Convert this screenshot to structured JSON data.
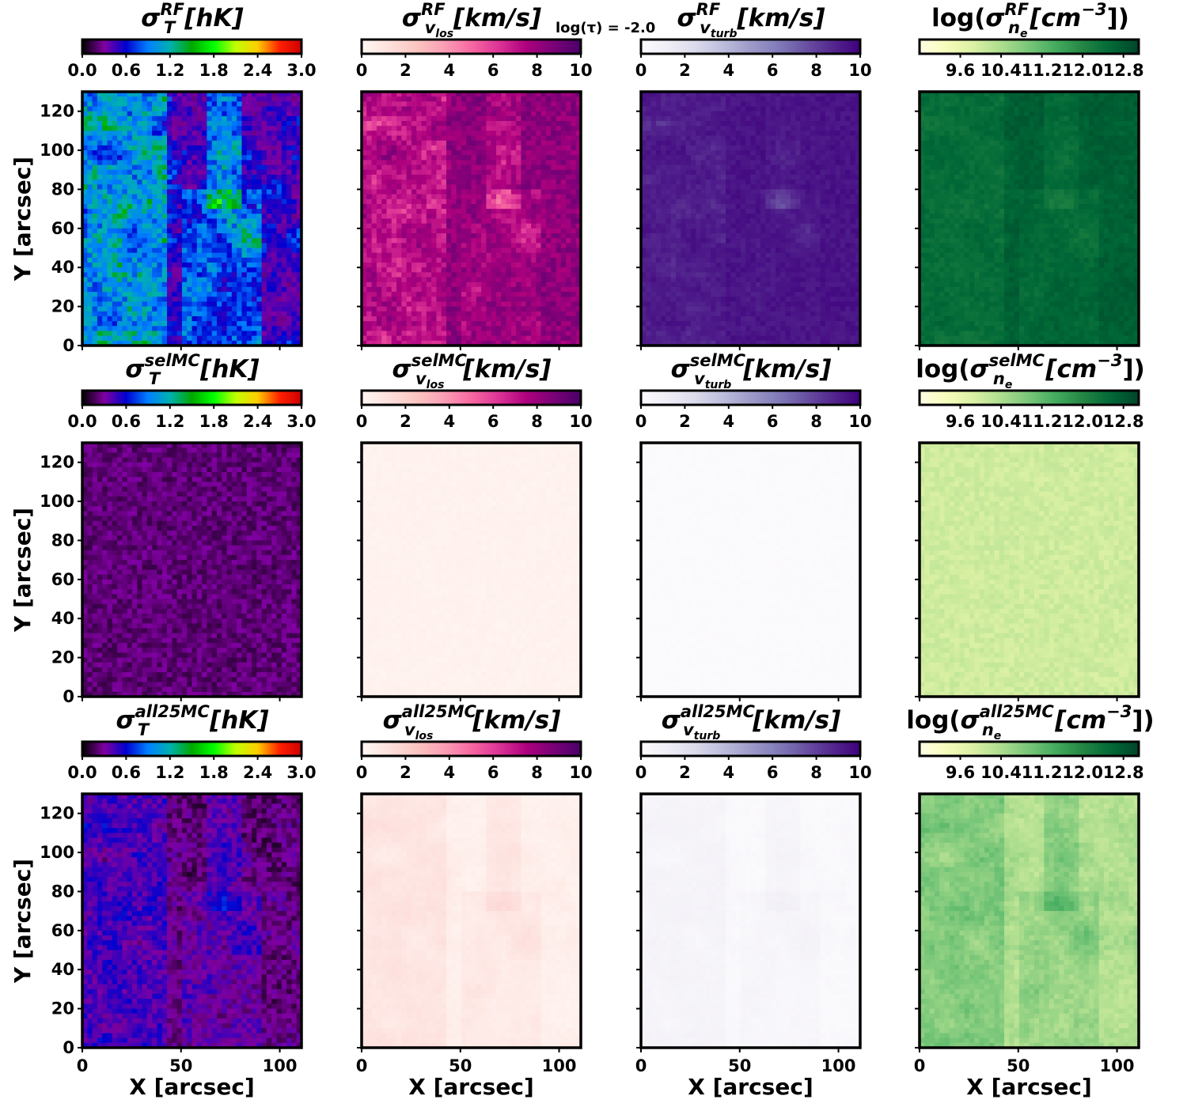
{
  "figure_note": "log(τ) = -2.0",
  "row_titles": [
    {
      "T": {
        "pre": "",
        "sym": "σ",
        "sup": "RF",
        "sub": "T",
        "unit": "[hK]",
        "post": ""
      },
      "vlos": {
        "pre": "",
        "sym": "σ",
        "sup": "RF",
        "sub": "v",
        "subsub": "los",
        "unit": "[km/s]",
        "post": ""
      },
      "vturb": {
        "pre": "",
        "sym": "σ",
        "sup": "RF",
        "sub": "v",
        "subsub": "turb",
        "unit": "[km/s]",
        "post": ""
      },
      "ne": {
        "pre": "log(",
        "sym": "σ",
        "sup": "RF",
        "sub": "n",
        "subsub": "e",
        "unit": "[cm",
        "unit_sup": "−3",
        "post": "])"
      }
    },
    {
      "T": {
        "pre": "",
        "sym": "σ",
        "sup": "selMC",
        "sub": "T",
        "unit": "[hK]",
        "post": ""
      },
      "vlos": {
        "pre": "",
        "sym": "σ",
        "sup": "selMC",
        "sub": "v",
        "subsub": "los",
        "unit": "[km/s]",
        "post": ""
      },
      "vturb": {
        "pre": "",
        "sym": "σ",
        "sup": "selMC",
        "sub": "v",
        "subsub": "turb",
        "unit": "[km/s]",
        "post": ""
      },
      "ne": {
        "pre": "log(",
        "sym": "σ",
        "sup": "selMC",
        "sub": "n",
        "subsub": "e",
        "unit": "[cm",
        "unit_sup": "−3",
        "post": "])"
      }
    },
    {
      "T": {
        "pre": "",
        "sym": "σ",
        "sup": "all25MC",
        "sub": "T",
        "unit": "[hK]",
        "post": ""
      },
      "vlos": {
        "pre": "",
        "sym": "σ",
        "sup": "all25MC",
        "sub": "v",
        "subsub": "los",
        "unit": "[km/s]",
        "post": ""
      },
      "vturb": {
        "pre": "",
        "sym": "σ",
        "sup": "all25MC",
        "sub": "v",
        "subsub": "turb",
        "unit": "[km/s]",
        "post": ""
      },
      "ne": {
        "pre": "log(",
        "sym": "σ",
        "sup": "all25MC",
        "sub": "n",
        "subsub": "e",
        "unit": "[cm",
        "unit_sup": "−3",
        "post": "])"
      }
    }
  ],
  "chart_data": {
    "type": "heatmap",
    "layout": {
      "rows": 3,
      "cols": 4
    },
    "xlabel": "X [arcsec]",
    "ylabel": "Y [arcsec]",
    "xlim": [
      0,
      111
    ],
    "ylim": [
      0,
      130
    ],
    "xticks": [
      0,
      50,
      100
    ],
    "yticks": [
      0,
      20,
      40,
      60,
      80,
      100,
      120
    ],
    "colorbars": {
      "T": {
        "range": [
          0.0,
          3.0
        ],
        "ticks": [
          "0.0",
          "0.6",
          "1.2",
          "1.8",
          "2.4",
          "3.0"
        ],
        "tick_values": [
          0.0,
          0.6,
          1.2,
          1.8,
          2.4,
          3.0
        ],
        "colormap": "nipy_spectral"
      },
      "vlos": {
        "range": [
          0,
          10
        ],
        "ticks": [
          "0",
          "2",
          "4",
          "6",
          "8",
          "10"
        ],
        "tick_values": [
          0,
          2,
          4,
          6,
          8,
          10
        ],
        "colormap": "RdPu"
      },
      "vturb": {
        "range": [
          0,
          10
        ],
        "ticks": [
          "0",
          "2",
          "4",
          "6",
          "8",
          "10"
        ],
        "tick_values": [
          0,
          2,
          4,
          6,
          8,
          10
        ],
        "colormap": "Purples"
      },
      "ne": {
        "range": [
          8.8,
          13.1
        ],
        "ticks": [
          "9.6",
          "10.4",
          "11.2",
          "12.0",
          "12.8"
        ],
        "tick_values": [
          9.6,
          10.4,
          11.2,
          12.0,
          12.8
        ],
        "colormap": "YlGn"
      }
    },
    "colormap_stops": {
      "nipy_spectral": [
        "#000000",
        "#8000a0",
        "#0000d0",
        "#0080ff",
        "#00b0b0",
        "#00a800",
        "#00ff00",
        "#c0ff00",
        "#ffcc00",
        "#ff2000",
        "#cc0000"
      ],
      "RdPu": [
        "#fff7f3",
        "#fde0dd",
        "#fcc5c0",
        "#fa9fb5",
        "#f768a1",
        "#dd3497",
        "#ae017e",
        "#7a0177",
        "#49006a"
      ],
      "Purples": [
        "#fcfbfd",
        "#efedf5",
        "#dadaeb",
        "#bcbddc",
        "#9e9ac8",
        "#807dba",
        "#6a51a3",
        "#54278f",
        "#3f007d"
      ],
      "YlGn": [
        "#ffffe5",
        "#f7fcb9",
        "#d9f0a3",
        "#addd8e",
        "#78c679",
        "#41ab5d",
        "#238443",
        "#006837",
        "#004529"
      ]
    },
    "panels": [
      [
        {
          "var": "T",
          "rf": true,
          "mean": 0.35,
          "spread": 0.55,
          "mask_boost": 0.6
        },
        {
          "var": "vlos",
          "rf": true,
          "mean": 8.3,
          "spread": 1.6,
          "mask_boost": -4.5
        },
        {
          "var": "vturb",
          "rf": true,
          "mean": 9.4,
          "spread": 0.8,
          "mask_boost": -3.5
        },
        {
          "var": "ne",
          "rf": true,
          "mean": 12.75,
          "spread": 0.25,
          "mask_boost": -0.4
        }
      ],
      [
        {
          "var": "T",
          "rf": false,
          "mean": 0.22,
          "spread": 0.18,
          "mask_boost": 0.0
        },
        {
          "var": "vlos",
          "rf": false,
          "mean": 0.25,
          "spread": 0.15,
          "mask_boost": 0.0
        },
        {
          "var": "vturb",
          "rf": false,
          "mean": 0.15,
          "spread": 0.1,
          "mask_boost": 0.0
        },
        {
          "var": "ne",
          "rf": false,
          "mean": 10.0,
          "spread": 0.3,
          "mask_boost": 0.0
        }
      ],
      [
        {
          "var": "T",
          "rf": false,
          "mean": 0.2,
          "spread": 0.25,
          "mask_boost": 0.35
        },
        {
          "var": "vlos",
          "rf": false,
          "mean": 0.3,
          "spread": 0.2,
          "mask_boost": 0.4
        },
        {
          "var": "vturb",
          "rf": false,
          "mean": 0.2,
          "spread": 0.15,
          "mask_boost": 0.25
        },
        {
          "var": "ne",
          "rf": false,
          "mean": 10.25,
          "spread": 0.3,
          "mask_boost": 0.8
        }
      ]
    ]
  }
}
